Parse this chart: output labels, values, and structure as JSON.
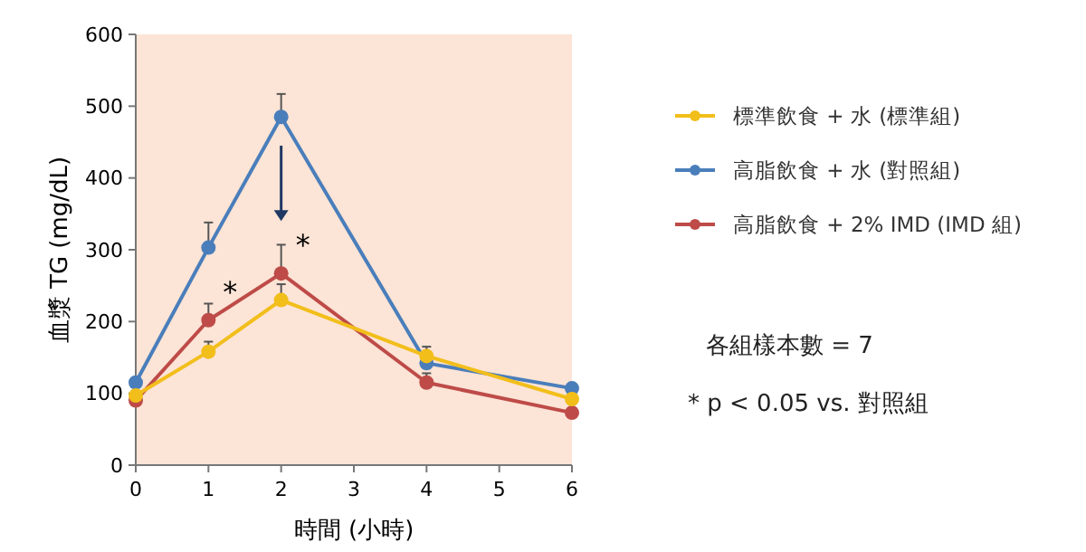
{
  "chart_data": {
    "type": "line",
    "xlabel": "時間 (小時)",
    "ylabel": "血漿 TG (mg/dL)",
    "x": [
      0,
      1,
      2,
      4,
      6
    ],
    "xlim": [
      0,
      6
    ],
    "xticks": [
      0,
      1,
      2,
      3,
      4,
      5,
      6
    ],
    "ylim": [
      0,
      600
    ],
    "yticks": [
      0,
      100,
      200,
      300,
      400,
      500,
      600
    ],
    "series": [
      {
        "name": "標準飲食 + 水 (標準組)",
        "color": "#f2be1a",
        "values": [
          97,
          158,
          230,
          152,
          92
        ],
        "errors": [
          null,
          [
            158,
            172
          ],
          [
            230,
            252
          ],
          [
            152,
            165
          ],
          null
        ]
      },
      {
        "name": "高脂飲食 + 水 (對照組)",
        "color": "#4a7ebb",
        "values": [
          115,
          303,
          485,
          142,
          107
        ],
        "errors": [
          null,
          [
            303,
            338
          ],
          [
            485,
            517
          ],
          null,
          null
        ]
      },
      {
        "name": "高脂飲食 + 2% IMD (IMD 組)",
        "color": "#be4b48",
        "values": [
          90,
          202,
          267,
          115,
          73
        ],
        "errors": [
          null,
          [
            202,
            225
          ],
          [
            267,
            307
          ],
          [
            115,
            128
          ],
          null
        ]
      }
    ],
    "annotations": [
      {
        "text": "*",
        "x": 1,
        "y": 202
      },
      {
        "text": "*",
        "x": 2,
        "y": 267
      },
      "各組樣本數 = 7",
      "* p < 0.05 vs. 對照組"
    ],
    "legend": "right",
    "marker": "circle",
    "line_style": "solid",
    "grid": false
  }
}
